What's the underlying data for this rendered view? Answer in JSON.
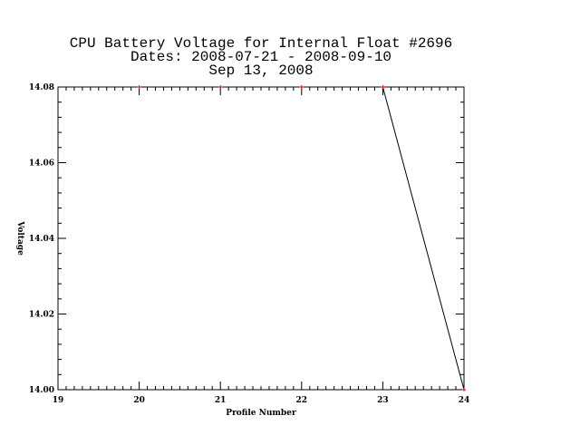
{
  "chart_data": {
    "type": "line",
    "title_lines": [
      "CPU Battery Voltage for Internal Float #2696",
      "Dates:  2008-07-21 -  2008-09-10",
      "Sep 13, 2008"
    ],
    "xlabel": "Profile Number",
    "ylabel": "Voltage",
    "xlim": [
      19,
      24
    ],
    "ylim": [
      14.0,
      14.08
    ],
    "x_ticks": [
      19,
      20,
      21,
      22,
      23,
      24
    ],
    "x_tick_labels": [
      "19",
      "20",
      "21",
      "22",
      "23",
      "24"
    ],
    "y_ticks": [
      14.0,
      14.02,
      14.04,
      14.06,
      14.08
    ],
    "y_tick_labels": [
      "14.00",
      "14.02",
      "14.04",
      "14.06",
      "14.08"
    ],
    "x_minor_per_major": 10,
    "y_minor_per_major": 5,
    "grid": false,
    "series": [
      {
        "x": [
          20,
          21,
          22,
          23,
          24
        ],
        "values": [
          14.08,
          14.08,
          14.08,
          14.08,
          14.0
        ],
        "line_color": "#000000",
        "marker_color": "#ff0000"
      }
    ]
  }
}
